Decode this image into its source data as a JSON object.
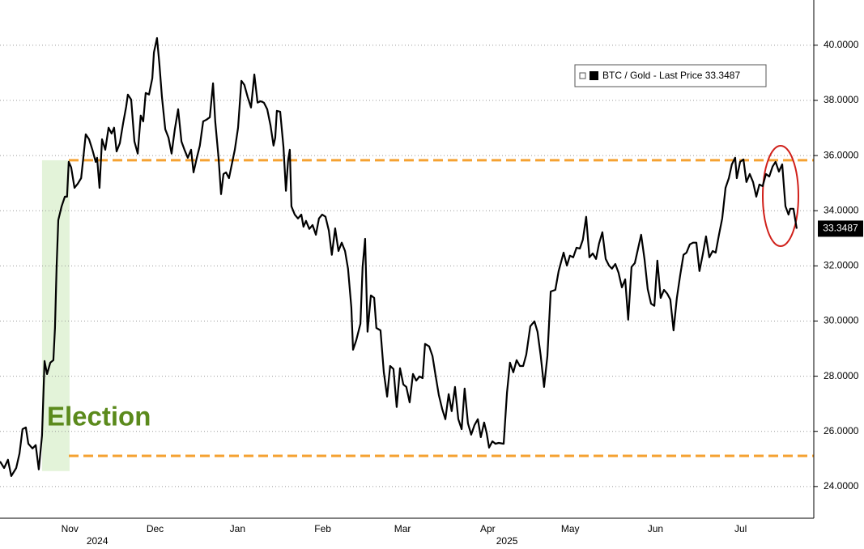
{
  "chart_data": {
    "type": "line",
    "xlim": [
      20.6,
      316.6
    ],
    "ylim": [
      22.85,
      41.64
    ],
    "yticks": [
      {
        "value": 24,
        "label": "24.0000"
      },
      {
        "value": 26,
        "label": "26.0000"
      },
      {
        "value": 28,
        "label": "28.0000"
      },
      {
        "value": 30,
        "label": "30.0000"
      },
      {
        "value": 32,
        "label": "32.0000"
      },
      {
        "value": 34,
        "label": "34.0000"
      },
      {
        "value": 36,
        "label": "36.0000"
      },
      {
        "value": 38,
        "label": "38.0000"
      },
      {
        "value": 40,
        "label": "40.0000"
      }
    ],
    "xticks": [
      {
        "value": 46,
        "label": "Nov"
      },
      {
        "value": 77,
        "label": "Dec"
      },
      {
        "value": 107,
        "label": "Jan"
      },
      {
        "value": 138,
        "label": "Feb"
      },
      {
        "value": 167,
        "label": "Mar"
      },
      {
        "value": 198,
        "label": "Apr"
      },
      {
        "value": 228,
        "label": "May"
      },
      {
        "value": 259,
        "label": "Jun"
      },
      {
        "value": 290,
        "label": "Jul"
      }
    ],
    "xyears": [
      {
        "value": 56,
        "label": "2024"
      },
      {
        "value": 205,
        "label": "2025"
      }
    ],
    "grid": true,
    "legend_text": "- Last Price",
    "series": [
      {
        "name": "BTC / Gold",
        "color": "#000000",
        "x": [
          20.6,
          22.1,
          23.5,
          24.7,
          26.5,
          27.7,
          28.8,
          30.0,
          30.9,
          32.4,
          33.6,
          34.7,
          35.9,
          36.8,
          37.7,
          38.9,
          40.0,
          40.6,
          41.2,
          41.8,
          43.0,
          44.2,
          45.0,
          45.6,
          46.5,
          47.7,
          48.9,
          50.1,
          50.9,
          51.8,
          53.0,
          54.2,
          55.4,
          55.9,
          56.8,
          57.7,
          58.9,
          60.1,
          61.2,
          62.1,
          63.0,
          64.2,
          65.4,
          66.5,
          67.1,
          68.3,
          69.5,
          70.7,
          71.8,
          72.7,
          73.6,
          74.8,
          76.0,
          76.6,
          77.7,
          78.6,
          79.5,
          80.7,
          81.9,
          83.0,
          84.2,
          85.4,
          86.6,
          87.7,
          88.9,
          90.1,
          91.0,
          92.2,
          93.3,
          94.5,
          95.7,
          96.9,
          98.1,
          98.9,
          100.1,
          101.0,
          101.9,
          102.8,
          103.9,
          105.1,
          106.0,
          107.2,
          108.4,
          109.5,
          110.7,
          111.9,
          113.1,
          114.3,
          115.4,
          116.6,
          117.8,
          119.0,
          120.1,
          120.7,
          121.3,
          122.5,
          123.7,
          124.6,
          125.4,
          126.0,
          126.6,
          127.8,
          129.0,
          130.2,
          131.0,
          131.9,
          133.1,
          134.3,
          135.5,
          136.6,
          137.8,
          139.0,
          140.2,
          141.3,
          142.5,
          143.7,
          144.9,
          146.1,
          147.2,
          148.4,
          149.0,
          150.2,
          151.7,
          152.5,
          153.4,
          154.3,
          155.5,
          156.7,
          157.5,
          159.0,
          160.2,
          161.4,
          162.5,
          163.7,
          164.9,
          166.1,
          167.3,
          168.4,
          169.6,
          170.8,
          172.0,
          173.2,
          174.3,
          175.2,
          176.7,
          177.9,
          179.0,
          180.2,
          181.4,
          182.6,
          183.8,
          184.9,
          186.1,
          187.3,
          188.5,
          189.6,
          190.8,
          192.0,
          193.2,
          194.4,
          195.5,
          196.7,
          197.6,
          198.5,
          199.7,
          200.8,
          202.0,
          203.8,
          205.0,
          206.1,
          207.3,
          208.5,
          209.7,
          210.9,
          212.0,
          213.5,
          215.0,
          216.1,
          217.3,
          218.5,
          219.7,
          220.9,
          222.6,
          223.8,
          225.6,
          226.8,
          227.9,
          229.1,
          230.3,
          231.5,
          232.6,
          233.8,
          235.0,
          236.2,
          237.4,
          238.5,
          239.7,
          240.9,
          242.1,
          243.2,
          244.4,
          245.6,
          246.8,
          248.0,
          249.1,
          250.3,
          251.5,
          252.7,
          253.8,
          255.0,
          256.2,
          257.4,
          258.6,
          259.7,
          260.9,
          262.1,
          263.3,
          264.4,
          265.6,
          266.8,
          268.0,
          269.2,
          270.3,
          271.5,
          272.7,
          273.9,
          275.0,
          276.2,
          277.4,
          278.6,
          279.8,
          280.9,
          282.1,
          283.3,
          284.5,
          285.7,
          286.8,
          288.0,
          288.6,
          289.8,
          291.0,
          292.1,
          293.3,
          294.5,
          295.7,
          296.8,
          298.0,
          299.2,
          300.4,
          301.6,
          302.7,
          303.9,
          305.1,
          306.3,
          307.4,
          308.0,
          309.2,
          310.4
        ],
        "values": [
          24.91,
          24.67,
          24.97,
          24.38,
          24.67,
          25.2,
          26.08,
          26.14,
          25.55,
          25.38,
          25.5,
          24.62,
          25.85,
          28.55,
          28.08,
          28.49,
          28.58,
          29.75,
          31.96,
          33.66,
          34.16,
          34.51,
          34.51,
          35.77,
          35.57,
          34.83,
          34.98,
          35.18,
          35.92,
          36.77,
          36.59,
          36.21,
          35.77,
          35.92,
          34.83,
          36.59,
          36.21,
          37.01,
          36.8,
          37.01,
          36.15,
          36.45,
          37.18,
          37.77,
          38.21,
          38.03,
          36.51,
          36.07,
          37.45,
          37.24,
          38.27,
          38.21,
          38.8,
          39.74,
          40.26,
          39.3,
          38.12,
          36.95,
          36.65,
          36.07,
          36.95,
          37.68,
          36.51,
          36.21,
          35.92,
          36.21,
          35.39,
          35.92,
          36.36,
          37.24,
          37.3,
          37.39,
          38.62,
          37.24,
          35.92,
          34.6,
          35.33,
          35.39,
          35.18,
          35.77,
          36.21,
          37.01,
          38.71,
          38.56,
          38.12,
          37.74,
          38.94,
          37.92,
          37.97,
          37.92,
          37.68,
          37.09,
          36.36,
          36.65,
          37.62,
          37.59,
          36.3,
          34.72,
          35.83,
          36.21,
          34.16,
          33.86,
          33.72,
          33.86,
          33.42,
          33.63,
          33.34,
          33.48,
          33.13,
          33.72,
          33.86,
          33.78,
          33.28,
          32.4,
          33.36,
          32.54,
          32.84,
          32.54,
          31.9,
          30.49,
          28.96,
          29.31,
          29.9,
          31.96,
          32.98,
          29.61,
          30.93,
          30.84,
          29.75,
          29.66,
          28.14,
          27.26,
          28.37,
          28.26,
          26.88,
          28.29,
          27.7,
          27.61,
          27.05,
          28.08,
          27.84,
          27.99,
          27.93,
          29.17,
          29.08,
          28.73,
          28.05,
          27.32,
          26.82,
          26.44,
          27.35,
          26.73,
          27.61,
          26.44,
          26.08,
          27.55,
          26.29,
          25.88,
          26.23,
          26.44,
          25.79,
          26.32,
          25.94,
          25.41,
          25.64,
          25.55,
          25.58,
          25.55,
          27.4,
          28.49,
          28.14,
          28.58,
          28.37,
          28.37,
          28.78,
          29.81,
          29.99,
          29.61,
          28.73,
          27.61,
          28.73,
          31.07,
          31.13,
          31.81,
          32.48,
          32.01,
          32.37,
          32.31,
          32.66,
          32.63,
          32.95,
          33.78,
          32.31,
          32.45,
          32.25,
          32.81,
          33.22,
          32.25,
          32.01,
          31.9,
          32.07,
          31.75,
          31.22,
          31.51,
          30.05,
          31.96,
          32.1,
          32.63,
          33.13,
          32.25,
          31.16,
          30.63,
          30.55,
          32.19,
          30.84,
          31.13,
          30.99,
          30.78,
          29.66,
          30.84,
          31.66,
          32.4,
          32.48,
          32.78,
          32.84,
          32.84,
          31.81,
          32.4,
          33.07,
          32.31,
          32.54,
          32.48,
          33.13,
          33.72,
          34.83,
          35.18,
          35.68,
          35.92,
          35.18,
          35.77,
          35.86,
          35.04,
          35.33,
          35.04,
          34.51,
          34.95,
          34.89,
          35.33,
          35.24,
          35.6,
          35.77,
          35.42,
          35.68,
          34.16,
          33.86,
          34.07,
          34.07,
          33.3487
        ]
      }
    ],
    "reference_lines": {
      "color": "#f5a232",
      "values": [
        35.83,
        25.11
      ]
    },
    "highlight": {
      "label": "Election",
      "color": "#e3f3d9",
      "label_color": "#5b8a1c",
      "x": [
        35.9,
        45.9
      ],
      "y": [
        24.56,
        35.83
      ]
    }
  }
}
